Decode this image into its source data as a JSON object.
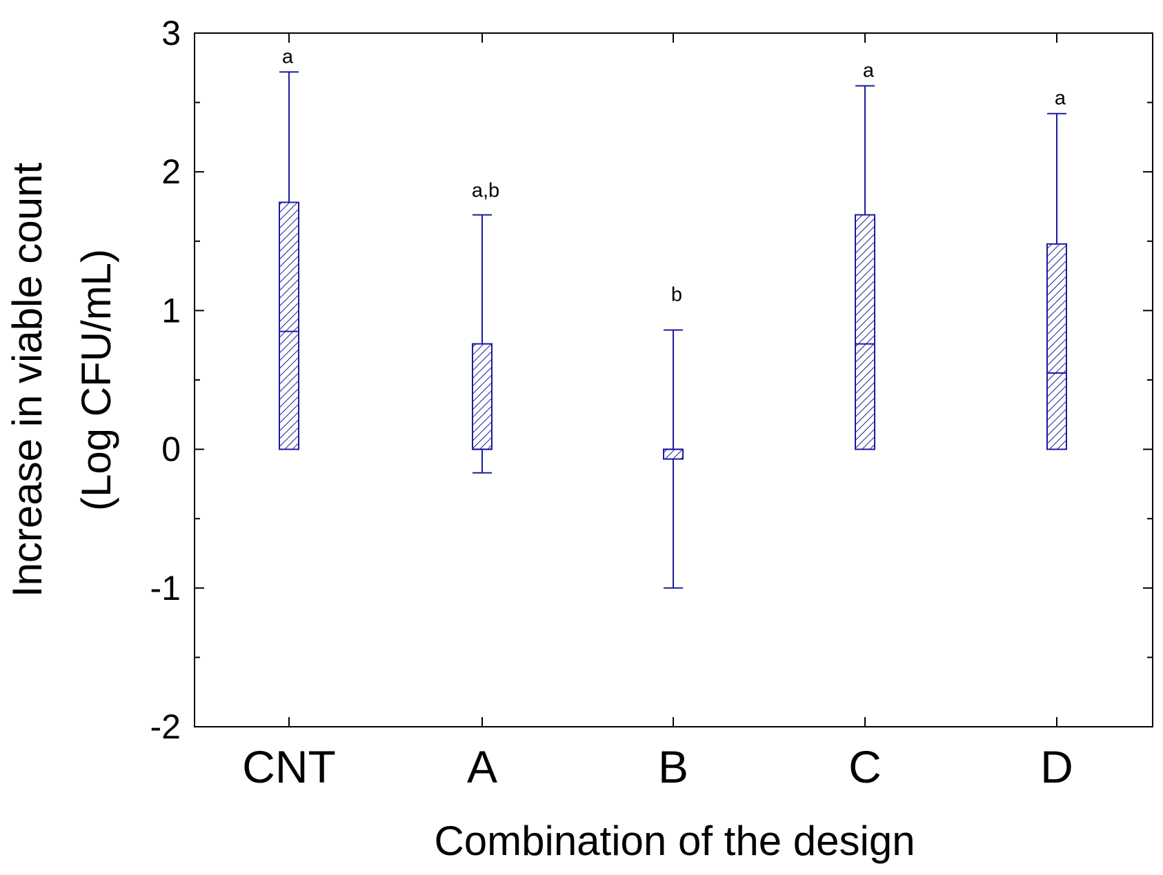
{
  "chart_data": {
    "type": "box",
    "xlabel": "Combination of the design",
    "ylabel_line1": "Increase in viable count",
    "ylabel_line2": "(Log CFU/mL)",
    "ylim": [
      -2,
      3
    ],
    "yticks": [
      3,
      2,
      1,
      0,
      -1,
      -2
    ],
    "ytick_labels": [
      "3",
      "2",
      "1",
      "0",
      "-1",
      "-2"
    ],
    "categories": [
      "CNT",
      "A",
      "B",
      "C",
      "D"
    ],
    "boxes": [
      {
        "category": "CNT",
        "q1": 0.0,
        "median": 0.85,
        "q3": 1.78,
        "whisker_low": 0.0,
        "whisker_high": 2.72,
        "group": "a"
      },
      {
        "category": "A",
        "q1": 0.0,
        "median": 0.0,
        "q3": 0.76,
        "whisker_low": -0.17,
        "whisker_high": 1.69,
        "group": "a,b"
      },
      {
        "category": "B",
        "q1": -0.07,
        "median": 0.0,
        "q3": 0.0,
        "whisker_low": -1.0,
        "whisker_high": 0.86,
        "group": "b"
      },
      {
        "category": "C",
        "q1": 0.0,
        "median": 0.76,
        "q3": 1.69,
        "whisker_low": 0.0,
        "whisker_high": 2.62,
        "group": "a"
      },
      {
        "category": "D",
        "q1": 0.0,
        "median": 0.55,
        "q3": 1.48,
        "whisker_low": 0.0,
        "whisker_high": 2.42,
        "group": "a"
      }
    ],
    "colors": {
      "box": "#1a1a9e",
      "axis": "#000000"
    }
  }
}
